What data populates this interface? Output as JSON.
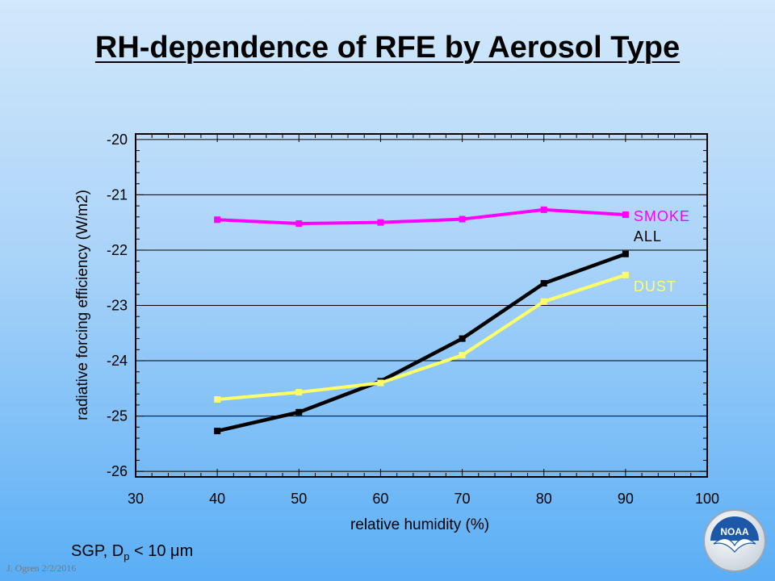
{
  "slide": {
    "title": "RH-dependence of RFE by Aerosol Type",
    "footnote_prefix": "SGP, D",
    "footnote_sub": "p",
    "footnote_suffix": " < 10 μm",
    "credit": "J. Ogren  2/2/2016",
    "logo_text": "NOAA"
  },
  "chart_data": {
    "type": "line",
    "title": "",
    "xlabel": "relative humidity (%)",
    "ylabel": "radiative forcing efficiency (W/m2)",
    "xlim": [
      30,
      100
    ],
    "ylim": [
      -26.1,
      -19.9
    ],
    "xticks": [
      30,
      40,
      50,
      60,
      70,
      80,
      90,
      100
    ],
    "yticks": [
      -20,
      -21,
      -22,
      -23,
      -24,
      -25,
      -26
    ],
    "grid": "horizontal",
    "x": [
      40,
      50,
      60,
      70,
      80,
      90
    ],
    "series": [
      {
        "name": "SMOKE",
        "color": "#ff00ff",
        "values": [
          -21.45,
          -21.52,
          -21.5,
          -21.44,
          -21.27,
          -21.36
        ]
      },
      {
        "name": "ALL",
        "color": "#000000",
        "values": [
          -25.27,
          -24.93,
          -24.37,
          -23.6,
          -22.6,
          -22.07
        ]
      },
      {
        "name": "DUST",
        "color": "#ffff66",
        "values": [
          -24.7,
          -24.57,
          -24.4,
          -23.9,
          -22.93,
          -22.45
        ]
      }
    ]
  }
}
